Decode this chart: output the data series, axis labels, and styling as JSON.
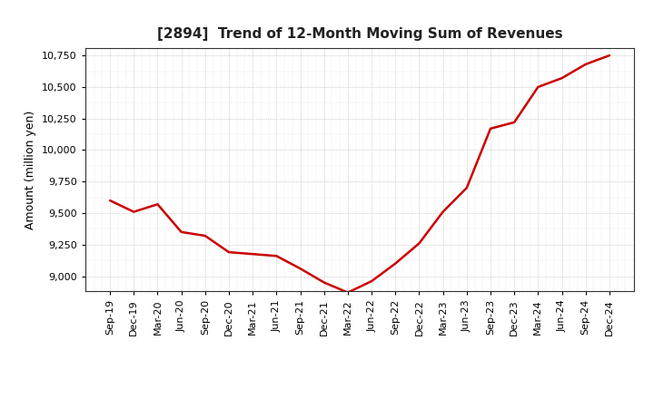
{
  "title": "[2894]  Trend of 12-Month Moving Sum of Revenues",
  "ylabel": "Amount (million yen)",
  "line_color": "#cc0000",
  "background_color": "#ffffff",
  "grid_color": "#999999",
  "ylim": [
    8880,
    10810
  ],
  "yticks": [
    9000,
    9250,
    9500,
    9750,
    10000,
    10250,
    10500,
    10750
  ],
  "x_labels": [
    "Sep-19",
    "Dec-19",
    "Mar-20",
    "Jun-20",
    "Sep-20",
    "Dec-20",
    "Mar-21",
    "Jun-21",
    "Sep-21",
    "Dec-21",
    "Mar-22",
    "Jun-22",
    "Sep-22",
    "Dec-22",
    "Mar-23",
    "Jun-23",
    "Sep-23",
    "Dec-23",
    "Mar-24",
    "Jun-24",
    "Sep-24",
    "Dec-24"
  ],
  "values": [
    9600,
    9510,
    9570,
    9350,
    9320,
    9190,
    9175,
    9160,
    9060,
    8950,
    8870,
    8960,
    9100,
    9260,
    9510,
    9700,
    10170,
    10220,
    10500,
    10570,
    10680,
    10750
  ]
}
